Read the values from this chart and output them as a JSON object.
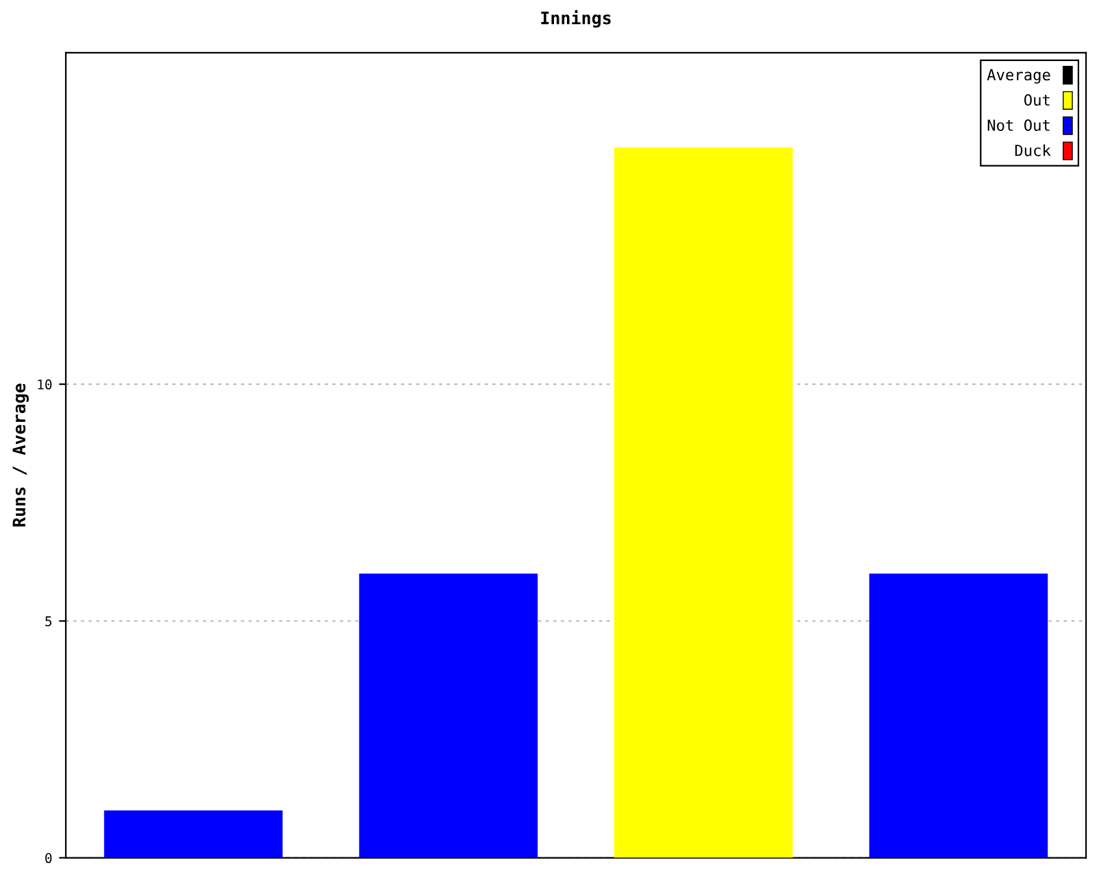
{
  "chart_data": {
    "type": "bar",
    "title": "Innings",
    "ylabel": "Runs / Average",
    "categories": [
      null,
      null,
      null,
      null
    ],
    "series": [
      {
        "name": "Average",
        "color": "#000000",
        "values": [
          null,
          null,
          null,
          null
        ]
      },
      {
        "name": "Out",
        "color": "#ffff00",
        "values": [
          null,
          null,
          15,
          null
        ]
      },
      {
        "name": "Not Out",
        "color": "#0000ff",
        "values": [
          1,
          6,
          null,
          6
        ]
      },
      {
        "name": "Duck",
        "color": "#ff0000",
        "values": [
          null,
          null,
          null,
          null
        ]
      }
    ],
    "ylim": [
      0,
      17
    ],
    "yticks": [
      0,
      5,
      10
    ],
    "grid": "y",
    "legend": "top right",
    "tick_labels": "y"
  }
}
